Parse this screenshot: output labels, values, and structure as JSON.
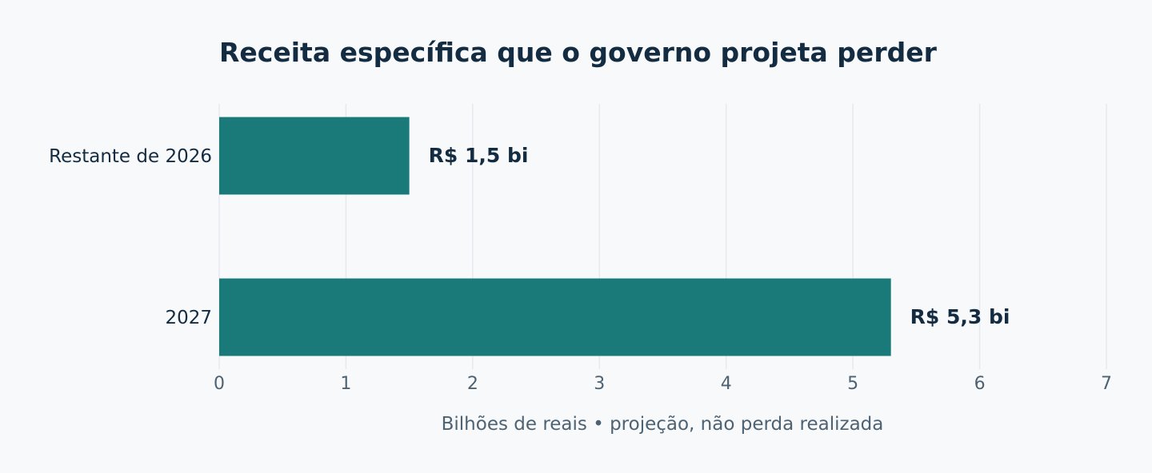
{
  "chart_data": {
    "type": "bar",
    "orientation": "horizontal",
    "title": "Receita específica que o governo projeta perder",
    "categories": [
      "Restante de 2026",
      "2027"
    ],
    "values": [
      1.5,
      5.3
    ],
    "data_labels": [
      "R$ 1,5 bi",
      "R$ 5,3 bi"
    ],
    "xlabel": "Bilhões de reais • projeção, não perda realizada",
    "ylabel": "",
    "xlim": [
      0,
      7
    ],
    "xticks": [
      "0",
      "1",
      "2",
      "3",
      "4",
      "5",
      "6",
      "7"
    ],
    "grid": true,
    "bar_color": "#1a7a7a"
  }
}
